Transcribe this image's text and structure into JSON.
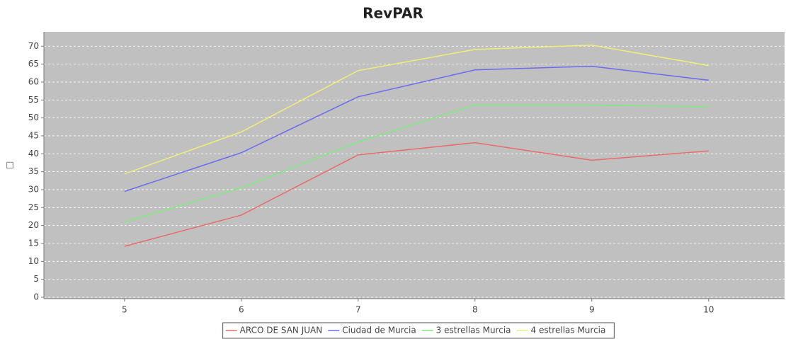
{
  "chart_data": {
    "type": "line",
    "title": "RevPAR",
    "y_label": "□",
    "x": [
      5,
      6,
      7,
      8,
      9,
      10
    ],
    "series": [
      {
        "name": "ARCO DE SAN JUAN",
        "color": "#e86a6a",
        "values": [
          14.2,
          22.9,
          39.7,
          43.1,
          38.2,
          40.8
        ]
      },
      {
        "name": "Ciudad de Murcia",
        "color": "#6b6bef",
        "values": [
          29.5,
          40.3,
          55.9,
          63.4,
          64.4,
          60.5
        ]
      },
      {
        "name": "3 estrellas Murcia",
        "color": "#7cec7c",
        "values": [
          21.0,
          30.5,
          43.3,
          53.6,
          53.6,
          53.1
        ]
      },
      {
        "name": "4 estrellas Murcia",
        "color": "#eeee7a",
        "values": [
          34.4,
          46.1,
          63.2,
          69.1,
          70.3,
          64.6
        ]
      }
    ],
    "xlim": [
      4.31,
      10.65
    ],
    "xticks": [
      5,
      6,
      7,
      8,
      9,
      10
    ],
    "ylim": [
      -0.4,
      74
    ],
    "yticks": [
      0,
      5,
      10,
      15,
      20,
      25,
      30,
      35,
      40,
      45,
      50,
      55,
      60,
      65,
      70
    ],
    "grid": true,
    "legend": "bottom"
  }
}
